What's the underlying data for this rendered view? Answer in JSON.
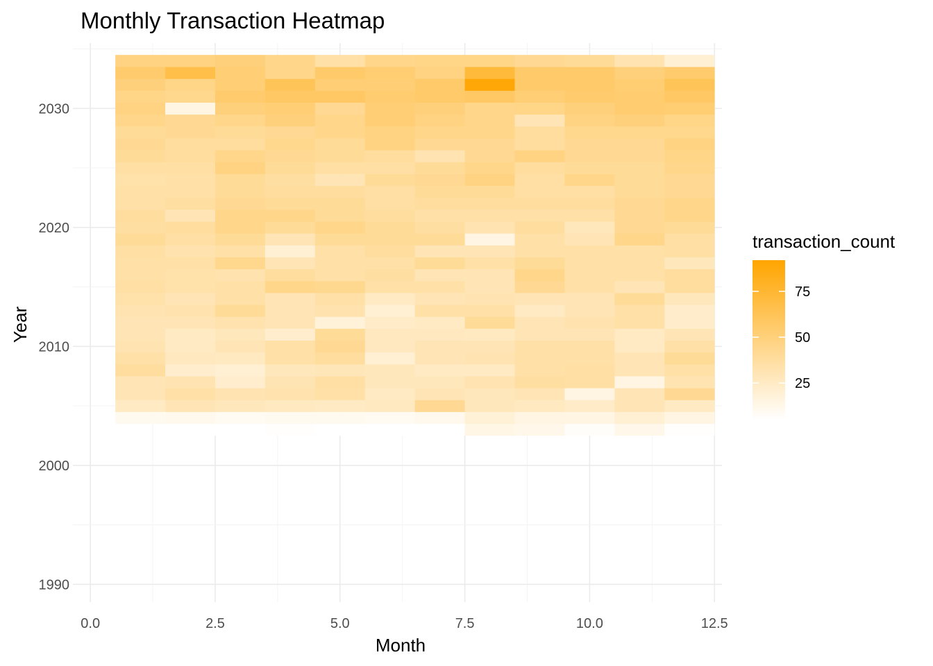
{
  "chart_data": {
    "type": "heatmap",
    "title": "Monthly Transaction Heatmap",
    "xlabel": "Month",
    "ylabel": "Year",
    "xlim": [
      -0.35,
      12.65
    ],
    "ylim": [
      1988.5,
      2035.5
    ],
    "x_ticks": [
      0.0,
      2.5,
      5.0,
      7.5,
      10.0,
      12.5
    ],
    "x_tick_labels": [
      "0.0",
      "2.5",
      "5.0",
      "7.5",
      "10.0",
      "12.5"
    ],
    "y_ticks": [
      1990,
      2000,
      2010,
      2020,
      2030
    ],
    "y_tick_labels": [
      "1990",
      "2000",
      "2010",
      "2020",
      "2030"
    ],
    "grid": true,
    "months": [
      1,
      2,
      3,
      4,
      5,
      6,
      7,
      8,
      9,
      10,
      11,
      12
    ],
    "years": [
      2003,
      2004,
      2005,
      2006,
      2007,
      2008,
      2009,
      2010,
      2011,
      2012,
      2013,
      2014,
      2015,
      2016,
      2017,
      2018,
      2019,
      2020,
      2021,
      2022,
      2023,
      2024,
      2025,
      2026,
      2027,
      2028,
      2029,
      2030,
      2031,
      2032,
      2033,
      2034
    ],
    "legend": {
      "title": "transaction_count",
      "placement": "right",
      "breaks": [
        25,
        50,
        75
      ],
      "break_labels": [
        "25",
        "50",
        "75"
      ],
      "min": 5,
      "max": 92,
      "low_color": "#ffffff",
      "high_color": "#ffa500"
    },
    "values": [
      [
        null,
        3,
        3,
        6,
        4,
        3,
        5,
        14,
        12,
        7,
        12,
        6
      ],
      [
        10,
        11,
        9,
        10,
        10,
        9,
        11,
        19,
        15,
        15,
        20,
        15
      ],
      [
        25,
        30,
        28,
        26,
        25,
        26,
        42,
        28,
        26,
        24,
        30,
        25
      ],
      [
        30,
        35,
        32,
        33,
        35,
        25,
        30,
        28,
        30,
        15,
        30,
        42
      ],
      [
        30,
        32,
        22,
        31,
        36,
        28,
        28,
        32,
        37,
        36,
        15,
        32
      ],
      [
        38,
        22,
        20,
        28,
        29,
        28,
        25,
        25,
        35,
        36,
        30,
        35
      ],
      [
        35,
        27,
        26,
        35,
        38,
        20,
        30,
        32,
        35,
        35,
        30,
        40
      ],
      [
        32,
        25,
        30,
        35,
        42,
        27,
        30,
        30,
        35,
        35,
        25,
        35
      ],
      [
        30,
        25,
        28,
        22,
        40,
        27,
        27,
        26,
        30,
        30,
        25,
        30
      ],
      [
        30,
        30,
        33,
        30,
        18,
        24,
        25,
        40,
        30,
        33,
        35,
        23
      ],
      [
        32,
        33,
        40,
        30,
        33,
        20,
        35,
        35,
        25,
        30,
        35,
        23
      ],
      [
        34,
        30,
        35,
        30,
        35,
        25,
        30,
        32,
        30,
        30,
        40,
        28
      ],
      [
        36,
        34,
        35,
        45,
        43,
        35,
        35,
        30,
        42,
        35,
        30,
        38
      ],
      [
        35,
        34,
        33,
        38,
        35,
        37,
        30,
        30,
        45,
        35,
        35,
        38
      ],
      [
        35,
        35,
        44,
        30,
        35,
        35,
        40,
        35,
        40,
        35,
        35,
        28
      ],
      [
        36,
        33,
        35,
        20,
        35,
        38,
        30,
        30,
        35,
        35,
        35,
        36
      ],
      [
        40,
        36,
        40,
        30,
        40,
        40,
        40,
        15,
        35,
        30,
        45,
        36
      ],
      [
        37,
        38,
        45,
        40,
        45,
        40,
        37,
        32,
        38,
        28,
        42,
        40
      ],
      [
        38,
        30,
        45,
        45,
        40,
        38,
        35,
        35,
        35,
        35,
        42,
        45
      ],
      [
        35,
        37,
        42,
        40,
        40,
        36,
        38,
        38,
        38,
        38,
        42,
        45
      ],
      [
        35,
        35,
        40,
        38,
        38,
        36,
        40,
        40,
        36,
        36,
        40,
        42
      ],
      [
        34,
        35,
        40,
        37,
        30,
        40,
        42,
        48,
        36,
        45,
        40,
        42
      ],
      [
        36,
        36,
        48,
        40,
        36,
        36,
        40,
        45,
        38,
        40,
        40,
        45
      ],
      [
        40,
        38,
        45,
        42,
        40,
        38,
        32,
        42,
        48,
        42,
        42,
        46
      ],
      [
        42,
        38,
        38,
        44,
        40,
        48,
        42,
        42,
        38,
        42,
        42,
        48
      ],
      [
        40,
        42,
        40,
        42,
        45,
        48,
        45,
        45,
        38,
        44,
        44,
        44
      ],
      [
        45,
        42,
        45,
        50,
        45,
        52,
        48,
        45,
        30,
        48,
        50,
        46
      ],
      [
        48,
        15,
        50,
        52,
        42,
        52,
        50,
        45,
        46,
        50,
        54,
        53
      ],
      [
        46,
        44,
        55,
        58,
        58,
        54,
        56,
        58,
        52,
        55,
        54,
        58
      ],
      [
        50,
        46,
        52,
        62,
        52,
        52,
        56,
        90,
        56,
        56,
        53,
        62
      ],
      [
        55,
        67,
        52,
        45,
        56,
        53,
        48,
        72,
        56,
        56,
        50,
        55
      ],
      [
        48,
        48,
        50,
        45,
        35,
        45,
        46,
        46,
        42,
        40,
        32,
        20
      ]
    ]
  }
}
